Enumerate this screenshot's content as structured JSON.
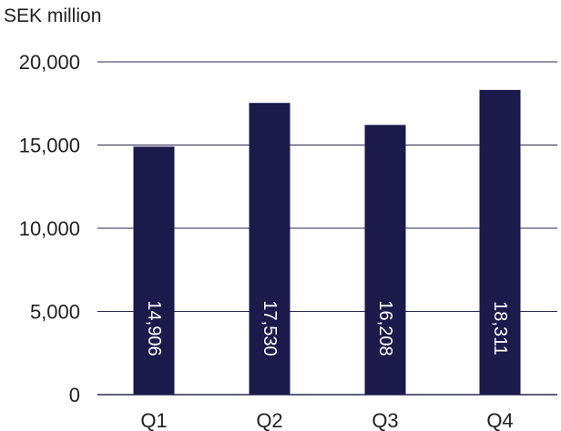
{
  "chart_data": {
    "type": "bar",
    "ylabel": "SEK million",
    "categories": [
      "Q1",
      "Q2",
      "Q3",
      "Q4"
    ],
    "values": [
      14906,
      17530,
      16208,
      18311
    ],
    "data_labels": [
      "14,906",
      "17,530",
      "16,208",
      "18,311"
    ],
    "ylim": [
      0,
      20000
    ],
    "yticks": [
      0,
      5000,
      10000,
      15000,
      20000
    ],
    "ytick_labels": [
      "0",
      "5,000",
      "10,000",
      "15,000",
      "20,000"
    ],
    "grid": true,
    "bar_color": "#1b1a4a",
    "grid_color": "#2a2950"
  }
}
